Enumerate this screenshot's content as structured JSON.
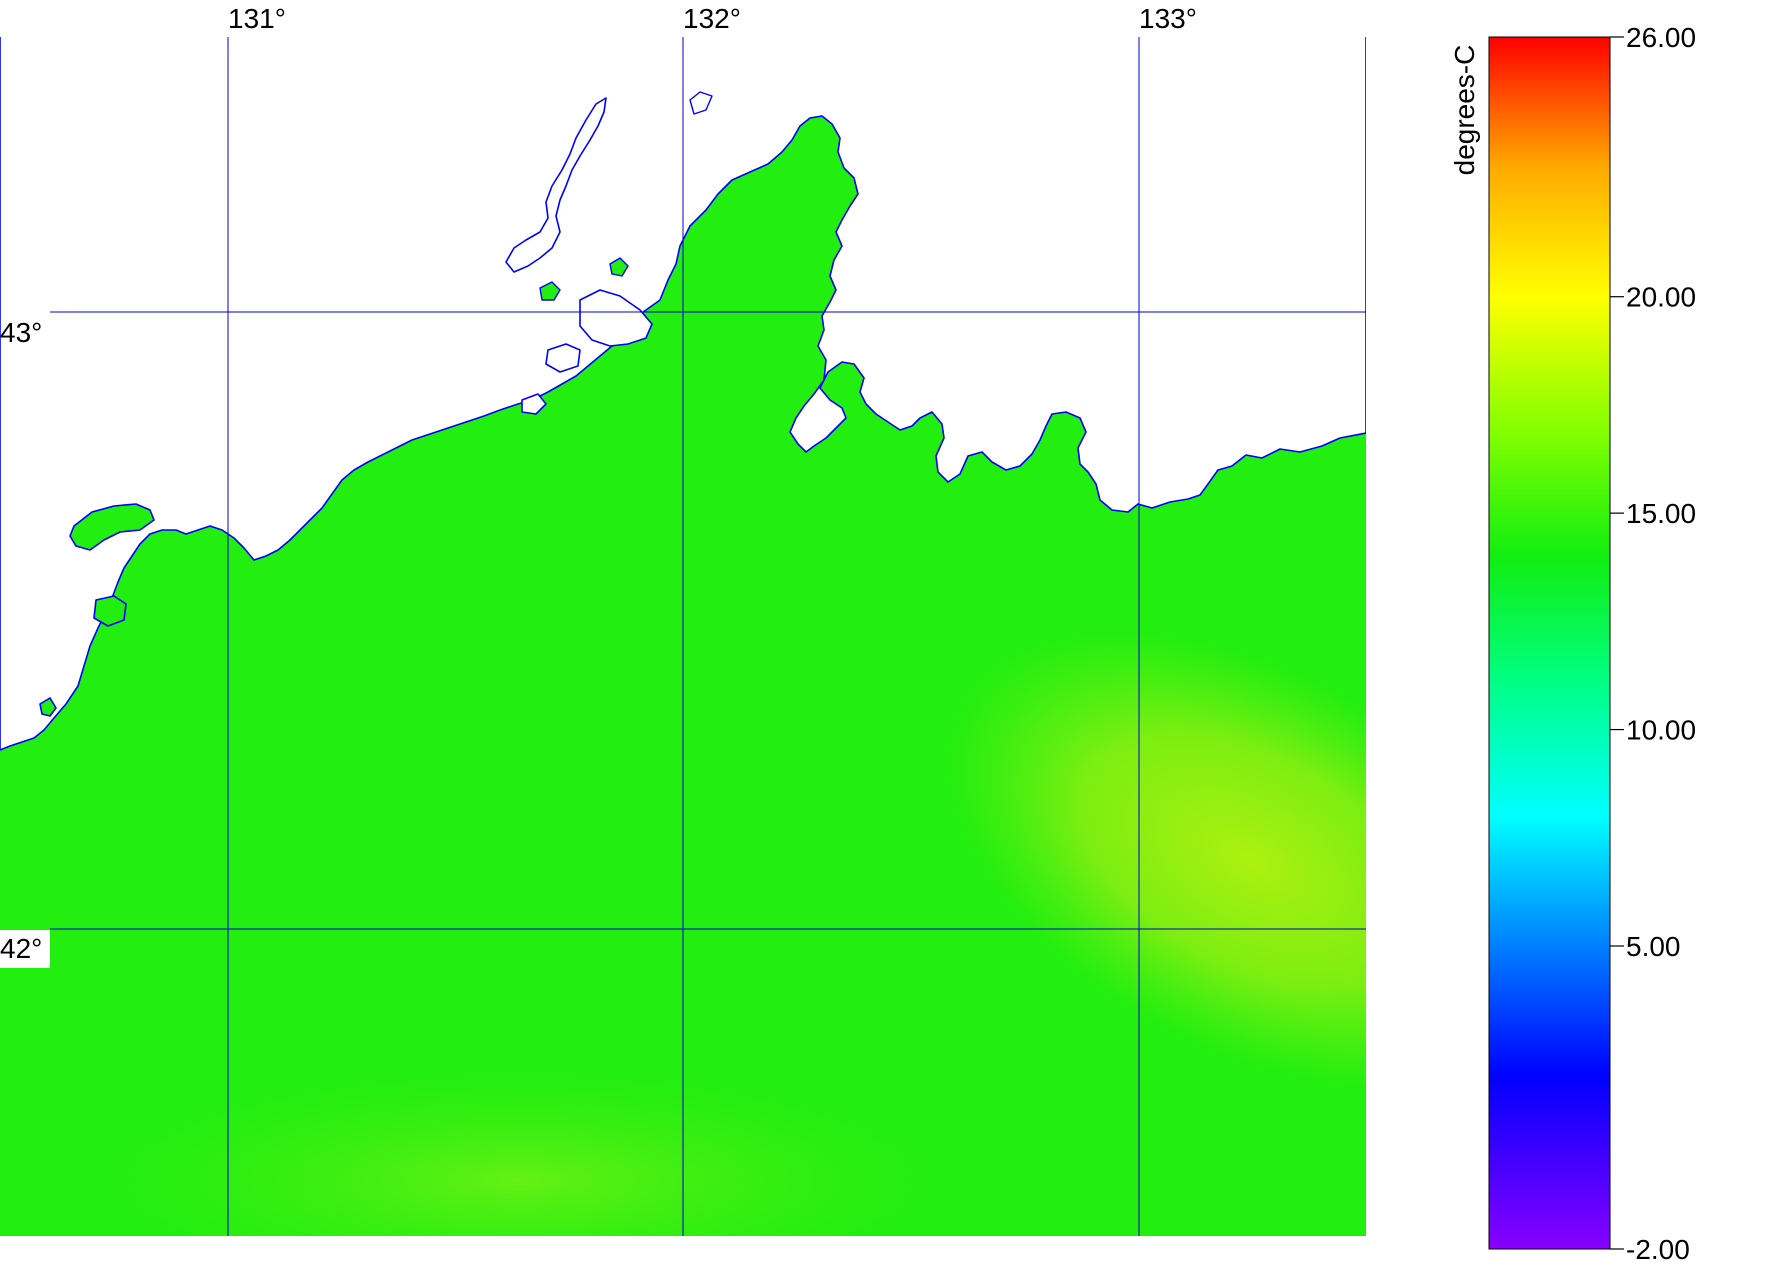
{
  "map": {
    "longitude_labels": [
      "131°",
      "132°",
      "133°"
    ],
    "latitude_labels": [
      "43°",
      "42°"
    ],
    "gridline_color": "#0000cc",
    "land_color": "#ffffff",
    "coastline_color": "#0000ff",
    "field_colors": {
      "dominant": "#22ee10",
      "warm_patch": "#a8ef10"
    }
  },
  "colorbar": {
    "unit_label": "degrees-C",
    "min": -2.0,
    "max": 26.0,
    "tick_labels": [
      "26.00",
      "20.00",
      "15.00",
      "10.00",
      "5.00",
      "-2.00"
    ],
    "tick_values": [
      26,
      20,
      15,
      10,
      5,
      -2
    ],
    "color_stops": [
      {
        "value": -2,
        "color": "#8800ff"
      },
      {
        "value": 2,
        "color": "#0000ff"
      },
      {
        "value": 8,
        "color": "#00ffff"
      },
      {
        "value": 11,
        "color": "#00ff88"
      },
      {
        "value": 14,
        "color": "#11ee11"
      },
      {
        "value": 17,
        "color": "#88ff00"
      },
      {
        "value": 20,
        "color": "#ffff00"
      },
      {
        "value": 23,
        "color": "#ffaa00"
      },
      {
        "value": 26,
        "color": "#ff0000"
      }
    ]
  }
}
